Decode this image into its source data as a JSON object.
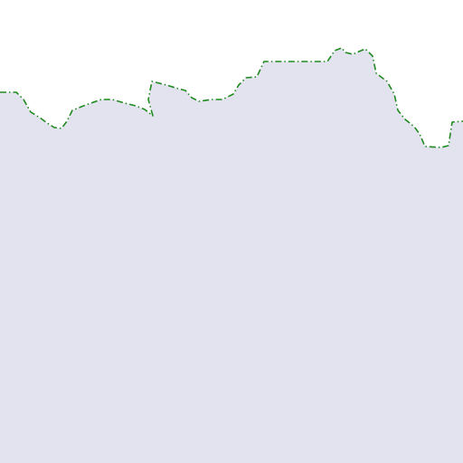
{
  "map": {
    "type": "map-tile",
    "colors": {
      "sky": "#ffffff",
      "land": "#e3e3f0",
      "border": "#1f8a1f",
      "border_gap": "#ffffff"
    },
    "features": [
      {
        "kind": "land-area",
        "name": "land-area"
      },
      {
        "kind": "boundary-line",
        "name": "boundary-line",
        "style": "dash-dot"
      }
    ]
  }
}
